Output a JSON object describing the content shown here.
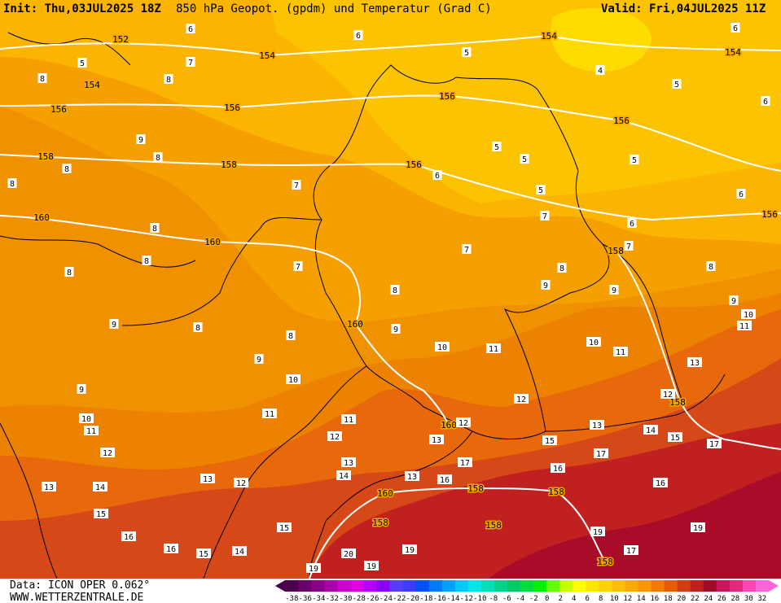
{
  "header": {
    "init": "Init: Thu,03JUL2025 18Z",
    "title": "850 hPa Geopot. (gpdm) und Temperatur (Grad C)",
    "valid": "Valid: Fri,04JUL2025 11Z"
  },
  "footer": {
    "source": "Data: ICON OPER 0.062°",
    "site": "WWW.WETTERZENTRALE.DE"
  },
  "geopotential_labels": [
    152,
    154,
    154,
    154,
    154,
    156,
    156,
    156,
    156,
    156,
    156,
    158,
    158,
    158,
    158,
    160,
    160,
    160,
    160,
    160,
    158,
    158,
    158,
    158,
    158
  ],
  "temperature_labels": [
    6,
    6,
    6,
    6,
    5,
    5,
    5,
    5,
    5,
    5,
    5,
    4,
    7,
    8,
    8,
    9,
    8,
    8,
    8,
    7,
    6,
    6,
    8,
    7,
    6,
    7,
    7,
    8,
    8,
    7,
    8,
    8,
    9,
    9,
    8,
    9,
    9,
    8,
    8,
    9,
    9,
    9,
    10,
    10,
    10,
    10,
    10,
    11,
    11,
    11,
    13,
    12,
    12,
    11,
    11,
    11,
    12,
    12,
    13,
    14,
    15,
    15,
    13,
    12,
    17,
    13,
    17,
    17,
    14,
    13,
    12,
    13,
    14,
    15,
    16,
    13,
    16,
    16,
    15,
    16,
    16,
    15,
    14,
    20,
    19,
    19,
    19,
    19,
    17,
    19
  ],
  "color_scale": {
    "labels": [
      -38,
      -36,
      -34,
      -32,
      -30,
      -28,
      -26,
      -24,
      -22,
      -20,
      -18,
      -16,
      -14,
      -12,
      -10,
      -8,
      -6,
      -4,
      -2,
      0,
      2,
      4,
      6,
      8,
      10,
      12,
      14,
      16,
      18,
      20,
      22,
      24,
      26,
      28,
      30,
      32
    ],
    "colors": [
      "#4b004b",
      "#6a006a",
      "#8a008a",
      "#aa00aa",
      "#cc00cc",
      "#e000e0",
      "#b400ff",
      "#8c00ff",
      "#5a3cff",
      "#3c3cff",
      "#0050ff",
      "#0078ff",
      "#00a0ff",
      "#00c8ff",
      "#00e6e6",
      "#00dcb4",
      "#00d28c",
      "#00c864",
      "#00dc3c",
      "#00f000",
      "#64ff00",
      "#c8ff00",
      "#ffff00",
      "#ffe600",
      "#ffd200",
      "#ffbe00",
      "#ffaa00",
      "#ff9600",
      "#f57800",
      "#e65a00",
      "#d23c14",
      "#be1e1e",
      "#a00a28",
      "#c8145a",
      "#e6287d",
      "#ff46b4",
      "#ff64dc"
    ]
  }
}
